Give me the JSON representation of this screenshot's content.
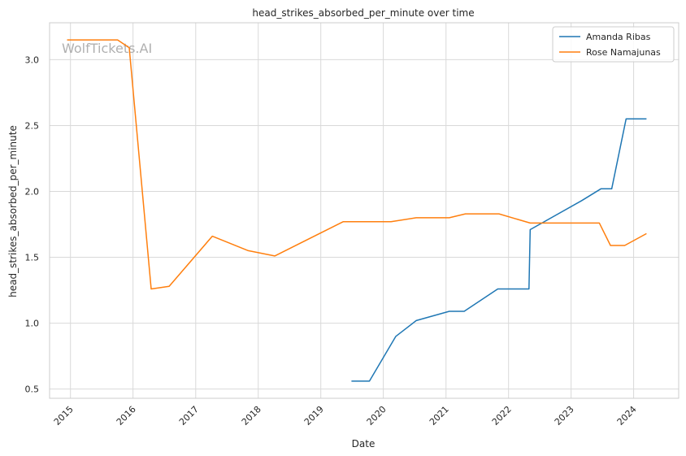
{
  "chart_data": {
    "type": "line",
    "title": "head_strikes_absorbed_per_minute over time",
    "xlabel": "Date",
    "ylabel": "head_strikes_absorbed_per_minute",
    "watermark": "WolfTickets.AI",
    "x_ticks": [
      "2015",
      "2016",
      "2017",
      "2018",
      "2019",
      "2020",
      "2021",
      "2022",
      "2023",
      "2024"
    ],
    "y_ticks": [
      "0.5",
      "1.0",
      "1.5",
      "2.0",
      "2.5",
      "3.0"
    ],
    "xlim": [
      "2014-09-01",
      "2024-09-20"
    ],
    "ylim": [
      0.43,
      3.28
    ],
    "grid": true,
    "legend_position": "top-right",
    "series": [
      {
        "name": "Amanda Ribas",
        "color": "#1f77b4",
        "points": [
          [
            "2019-06-29",
            0.56
          ],
          [
            "2019-10-12",
            0.56
          ],
          [
            "2020-03-14",
            0.9
          ],
          [
            "2020-07-11",
            1.02
          ],
          [
            "2021-01-20",
            1.09
          ],
          [
            "2021-04-17",
            1.09
          ],
          [
            "2021-10-30",
            1.26
          ],
          [
            "2022-04-30",
            1.26
          ],
          [
            "2022-05-07",
            1.71
          ],
          [
            "2023-03-04",
            1.93
          ],
          [
            "2023-06-24",
            2.02
          ],
          [
            "2023-08-26",
            2.02
          ],
          [
            "2023-11-18",
            2.55
          ],
          [
            "2024-03-16",
            2.55
          ]
        ]
      },
      {
        "name": "Rose Namajunas",
        "color": "#ff7f0e",
        "points": [
          [
            "2014-12-12",
            3.15
          ],
          [
            "2015-10-03",
            3.15
          ],
          [
            "2015-12-10",
            3.09
          ],
          [
            "2016-04-16",
            1.26
          ],
          [
            "2016-07-30",
            1.28
          ],
          [
            "2017-04-08",
            1.66
          ],
          [
            "2017-11-04",
            1.55
          ],
          [
            "2018-04-07",
            1.51
          ],
          [
            "2019-05-11",
            1.77
          ],
          [
            "2020-02-15",
            1.77
          ],
          [
            "2020-07-11",
            1.8
          ],
          [
            "2021-01-20",
            1.8
          ],
          [
            "2021-04-24",
            1.83
          ],
          [
            "2021-11-06",
            1.83
          ],
          [
            "2022-05-07",
            1.76
          ],
          [
            "2023-06-15",
            1.76
          ],
          [
            "2023-08-19",
            1.59
          ],
          [
            "2023-11-10",
            1.59
          ],
          [
            "2024-03-16",
            1.68
          ]
        ]
      }
    ]
  }
}
